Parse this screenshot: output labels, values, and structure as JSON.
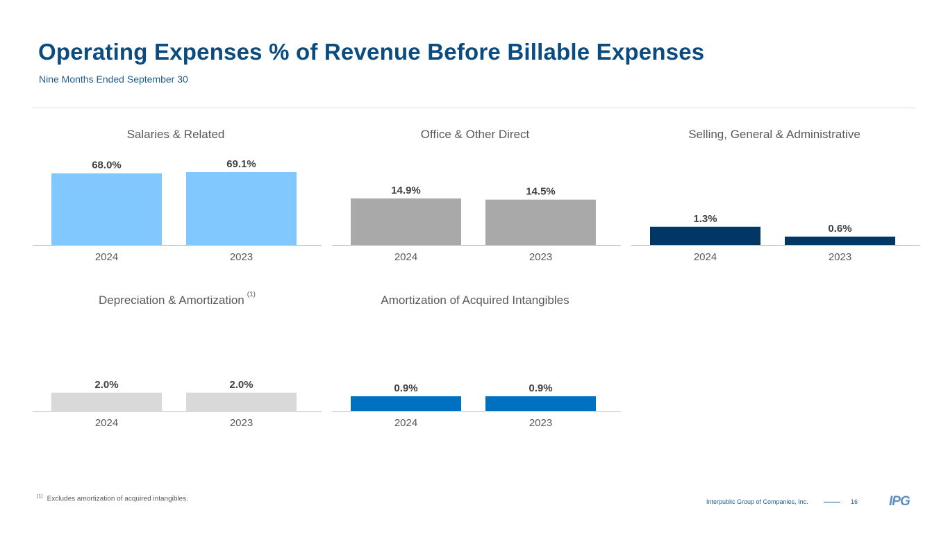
{
  "header": {
    "title": "Operating Expenses % of Revenue Before Billable Expenses",
    "subtitle": "Nine Months Ended September 30"
  },
  "chart_data": [
    {
      "type": "bar",
      "title": "Salaries & Related",
      "footnote_marker": "",
      "categories": [
        "2024",
        "2023"
      ],
      "values": [
        68.0,
        69.1
      ],
      "labels": [
        "68.0%",
        "69.1%"
      ],
      "color": "#80c8ff",
      "ylim": [
        0,
        69.1
      ],
      "xlabel": "",
      "ylabel": ""
    },
    {
      "type": "bar",
      "title": "Office & Other Direct",
      "footnote_marker": "",
      "categories": [
        "2024",
        "2023"
      ],
      "values": [
        14.9,
        14.5
      ],
      "labels": [
        "14.9%",
        "14.5%"
      ],
      "color": "#a9a9a9",
      "ylim": [
        0,
        23.3
      ],
      "xlabel": "",
      "ylabel": ""
    },
    {
      "type": "bar",
      "title": "Selling, General & Administrative",
      "footnote_marker": "",
      "categories": [
        "2024",
        "2023"
      ],
      "values": [
        1.3,
        0.6
      ],
      "labels": [
        "1.3%",
        "0.6%"
      ],
      "color": "#003764",
      "ylim": [
        0,
        5.2
      ],
      "xlabel": "",
      "ylabel": ""
    },
    {
      "type": "bar",
      "title": "Depreciation & Amortization",
      "footnote_marker": "(1)",
      "categories": [
        "2024",
        "2023"
      ],
      "values": [
        2.0,
        2.0
      ],
      "labels": [
        "2.0%",
        "2.0%"
      ],
      "color": "#d9d9d9",
      "ylim": [
        0,
        8.0
      ],
      "xlabel": "",
      "ylabel": ""
    },
    {
      "type": "bar",
      "title": "Amortization of Acquired Intangibles",
      "footnote_marker": "",
      "categories": [
        "2024",
        "2023"
      ],
      "values": [
        0.9,
        0.9
      ],
      "labels": [
        "0.9%",
        "0.9%"
      ],
      "color": "#0070c0",
      "ylim": [
        0,
        4.5
      ],
      "xlabel": "",
      "ylabel": ""
    }
  ],
  "footnote": {
    "marker": "(1)",
    "text": "Excludes amortization of acquired intangibles."
  },
  "footer": {
    "company": "Interpublic Group of Companies, Inc.",
    "page": "16",
    "logo": "IPG"
  }
}
